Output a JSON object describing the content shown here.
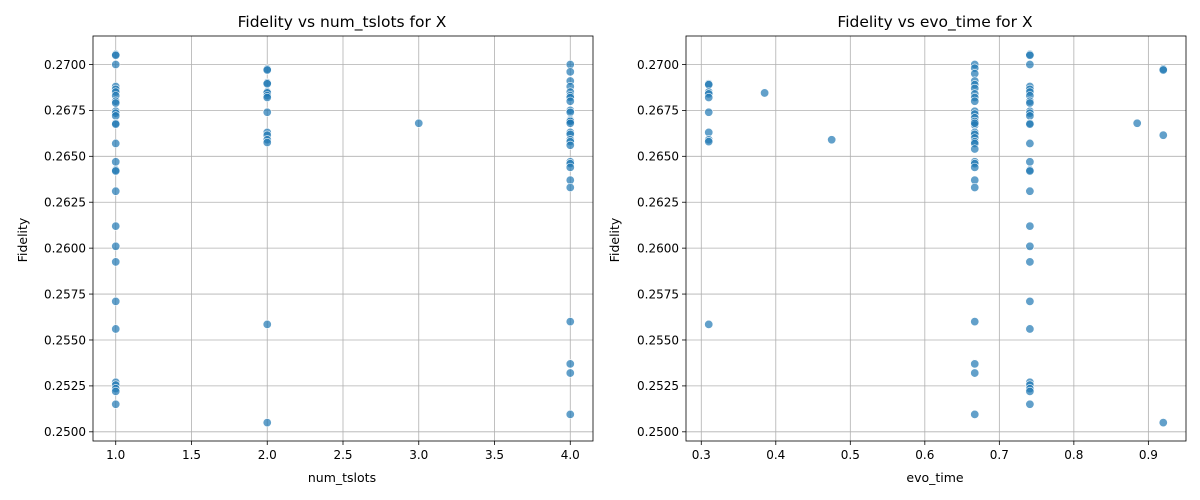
{
  "chart_data": [
    {
      "type": "scatter",
      "title": "Fidelity vs num_tslots for X",
      "xlabel": "num_tslots",
      "ylabel": "Fidelity",
      "xlim": [
        0.85,
        4.15
      ],
      "ylim": [
        0.2495,
        0.27155
      ],
      "xticks": [
        1.0,
        1.5,
        2.0,
        2.5,
        3.0,
        3.5,
        4.0
      ],
      "xtick_labels": [
        "1.0",
        "1.5",
        "2.0",
        "2.5",
        "3.0",
        "3.5",
        "4.0"
      ],
      "yticks": [
        0.25,
        0.2525,
        0.255,
        0.2575,
        0.26,
        0.2625,
        0.265,
        0.2675,
        0.27
      ],
      "ytick_labels": [
        "0.2500",
        "0.2525",
        "0.2550",
        "0.2575",
        "0.2600",
        "0.2625",
        "0.2650",
        "0.2675",
        "0.2700"
      ],
      "grid": true,
      "series": [
        {
          "x": [
            1,
            1,
            1,
            1,
            1,
            1,
            1,
            1,
            1,
            1,
            1,
            1,
            1,
            1,
            1,
            1,
            1,
            1,
            1,
            1,
            1,
            1,
            1,
            1,
            1,
            1,
            1,
            1,
            1,
            2,
            2,
            2,
            2,
            2,
            2,
            2,
            2,
            2,
            2,
            2,
            2,
            2,
            2,
            2,
            3,
            4,
            4,
            4,
            4,
            4,
            4,
            4,
            4,
            4,
            4,
            4,
            4,
            4,
            4,
            4,
            4,
            4,
            4,
            4,
            4,
            4,
            4,
            4,
            4,
            4,
            4,
            4,
            4
          ],
          "y": [
            0.27055,
            0.2705,
            0.27,
            0.2688,
            0.26865,
            0.2685,
            0.2683,
            0.268,
            0.2679,
            0.26745,
            0.26735,
            0.2672,
            0.2668,
            0.26675,
            0.2657,
            0.2647,
            0.26425,
            0.2642,
            0.2631,
            0.2612,
            0.2601,
            0.25925,
            0.2571,
            0.2556,
            0.2527,
            0.25255,
            0.25235,
            0.2522,
            0.2515,
            0.26975,
            0.2697,
            0.269,
            0.26895,
            0.2685,
            0.26845,
            0.2683,
            0.2682,
            0.2674,
            0.2663,
            0.26615,
            0.2659,
            0.26575,
            0.25585,
            0.2505,
            0.2668,
            0.27,
            0.2696,
            0.2691,
            0.2688,
            0.2685,
            0.2683,
            0.2682,
            0.268,
            0.2675,
            0.2674,
            0.267,
            0.26695,
            0.2669,
            0.2668,
            0.2663,
            0.2662,
            0.2659,
            0.2658,
            0.2656,
            0.2647,
            0.2646,
            0.2644,
            0.2637,
            0.2633,
            0.256,
            0.2537,
            0.2532,
            0.25095
          ]
        }
      ]
    },
    {
      "type": "scatter",
      "title": "Fidelity vs evo_time for X",
      "xlabel": "evo_time",
      "ylabel": "Fidelity",
      "xlim": [
        0.2795,
        0.9505
      ],
      "ylim": [
        0.2495,
        0.27155
      ],
      "xticks": [
        0.3,
        0.4,
        0.5,
        0.6,
        0.7,
        0.8,
        0.9
      ],
      "xtick_labels": [
        "0.3",
        "0.4",
        "0.5",
        "0.6",
        "0.7",
        "0.8",
        "0.9"
      ],
      "yticks": [
        0.25,
        0.2525,
        0.255,
        0.2575,
        0.26,
        0.2625,
        0.265,
        0.2675,
        0.27
      ],
      "ytick_labels": [
        "0.2500",
        "0.2525",
        "0.2550",
        "0.2575",
        "0.2600",
        "0.2625",
        "0.2650",
        "0.2675",
        "0.2700"
      ],
      "grid": true,
      "series": [
        {
          "x": [
            0.31,
            0.31,
            0.31,
            0.31,
            0.31,
            0.31,
            0.31,
            0.31,
            0.31,
            0.31,
            0.385,
            0.475,
            0.667,
            0.667,
            0.667,
            0.667,
            0.667,
            0.667,
            0.667,
            0.667,
            0.667,
            0.667,
            0.667,
            0.667,
            0.667,
            0.667,
            0.667,
            0.667,
            0.667,
            0.667,
            0.667,
            0.667,
            0.667,
            0.667,
            0.667,
            0.667,
            0.667,
            0.667,
            0.667,
            0.667,
            0.667,
            0.667,
            0.741,
            0.741,
            0.741,
            0.741,
            0.741,
            0.741,
            0.741,
            0.741,
            0.741,
            0.741,
            0.741,
            0.741,
            0.741,
            0.741,
            0.741,
            0.741,
            0.741,
            0.741,
            0.741,
            0.741,
            0.741,
            0.741,
            0.741,
            0.741,
            0.741,
            0.741,
            0.741,
            0.741,
            0.741,
            0.885,
            0.92,
            0.92,
            0.92,
            0.92
          ],
          "y": [
            0.26895,
            0.2689,
            0.2685,
            0.2684,
            0.2682,
            0.2674,
            0.2663,
            0.2659,
            0.2658,
            0.25585,
            0.26845,
            0.2659,
            0.27,
            0.2698,
            0.2695,
            0.2691,
            0.2689,
            0.2687,
            0.2684,
            0.2682,
            0.268,
            0.26745,
            0.2673,
            0.2671,
            0.2669,
            0.2667,
            0.2663,
            0.2662,
            0.266,
            0.2658,
            0.2657,
            0.2654,
            0.2647,
            0.2646,
            0.2644,
            0.2637,
            0.2633,
            0.256,
            0.2537,
            0.2532,
            0.25095,
            0.2668,
            0.27055,
            0.2705,
            0.27,
            0.2688,
            0.26865,
            0.2685,
            0.2683,
            0.268,
            0.2679,
            0.26745,
            0.26735,
            0.2672,
            0.2668,
            0.26675,
            0.2657,
            0.2647,
            0.26425,
            0.2642,
            0.2631,
            0.2612,
            0.2601,
            0.25925,
            0.2571,
            0.2556,
            0.2527,
            0.25255,
            0.25235,
            0.2522,
            0.2515,
            0.2668,
            0.26975,
            0.2697,
            0.26615,
            0.2505
          ]
        }
      ]
    }
  ]
}
